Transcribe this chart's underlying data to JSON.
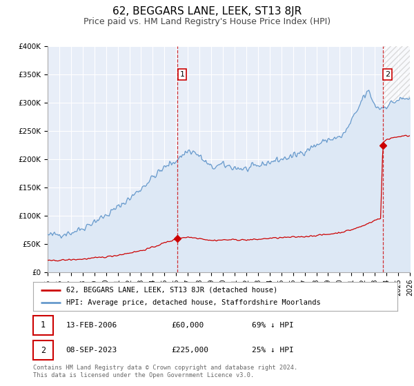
{
  "title": "62, BEGGARS LANE, LEEK, ST13 8JR",
  "subtitle": "Price paid vs. HM Land Registry's House Price Index (HPI)",
  "ylim": [
    0,
    400000
  ],
  "xlim": [
    1995.0,
    2026.0
  ],
  "yticks": [
    0,
    50000,
    100000,
    150000,
    200000,
    250000,
    300000,
    350000,
    400000
  ],
  "ytick_labels": [
    "£0",
    "£50K",
    "£100K",
    "£150K",
    "£200K",
    "£250K",
    "£300K",
    "£350K",
    "£400K"
  ],
  "xticks": [
    1995,
    1996,
    1997,
    1998,
    1999,
    2000,
    2001,
    2002,
    2003,
    2004,
    2005,
    2006,
    2007,
    2008,
    2009,
    2010,
    2011,
    2012,
    2013,
    2014,
    2015,
    2016,
    2017,
    2018,
    2019,
    2020,
    2021,
    2022,
    2023,
    2024,
    2025,
    2026
  ],
  "bg_color": "#e8eef8",
  "hpi_color": "#6699cc",
  "hpi_fill_color": "#dde8f5",
  "price_color": "#cc0000",
  "grid_color": "#ffffff",
  "hatch_color": "#cccccc",
  "sale1_x": 2006.12,
  "sale1_y": 60000,
  "sale2_x": 2023.69,
  "sale2_y": 225000,
  "legend_property": "62, BEGGARS LANE, LEEK, ST13 8JR (detached house)",
  "legend_hpi": "HPI: Average price, detached house, Staffordshire Moorlands",
  "table_row1": [
    "1",
    "13-FEB-2006",
    "£60,000",
    "69% ↓ HPI"
  ],
  "table_row2": [
    "2",
    "08-SEP-2023",
    "£225,000",
    "25% ↓ HPI"
  ],
  "footnote": "Contains HM Land Registry data © Crown copyright and database right 2024.\nThis data is licensed under the Open Government Licence v3.0."
}
